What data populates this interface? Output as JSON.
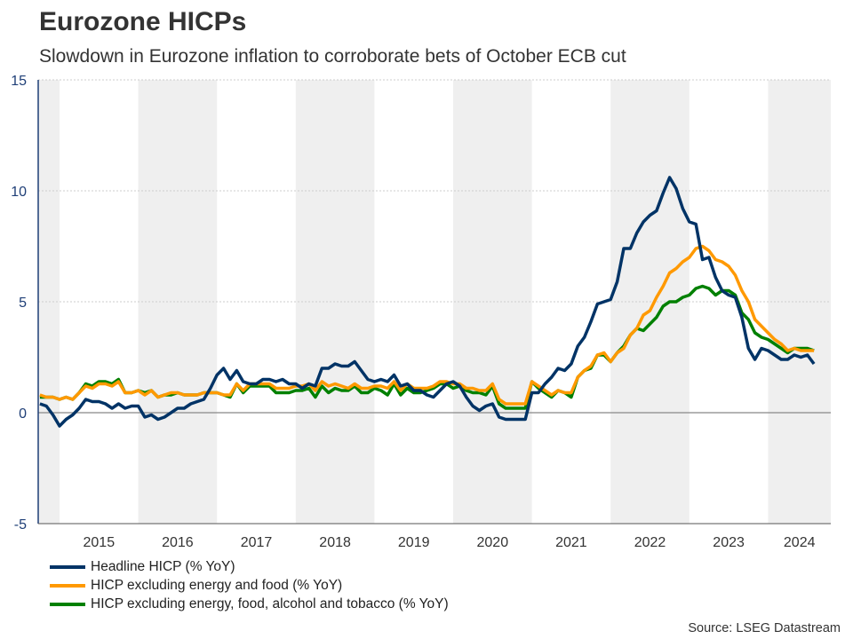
{
  "colors": {
    "headline": "#003366",
    "core_ef": "#ff9900",
    "core_efat": "#008000",
    "band": "#efefef",
    "axis": "#1f3f77"
  },
  "chart_data": {
    "type": "line",
    "title": "Eurozone HICPs",
    "subtitle": "Slowdown in Eurozone inflation to corroborate bets of October ECB cut",
    "start": "2014-10",
    "end": "2024-08",
    "frequency": "monthly",
    "ylim": [
      -5,
      15
    ],
    "yticks": [
      -5,
      0,
      5,
      10,
      15
    ],
    "ytick_labels": [
      "-5",
      "0",
      "5",
      "10",
      "15"
    ],
    "xtick_labels": [
      "2015",
      "2016",
      "2017",
      "2018",
      "2019",
      "2020",
      "2021",
      "2022",
      "2023",
      "2024"
    ],
    "legend_position": "bottom-left",
    "source": "Source: LSEG Datastream",
    "series": [
      {
        "name": "Headline HICP (% YoY)",
        "key": "headline",
        "values": [
          0.4,
          0.3,
          -0.1,
          -0.6,
          -0.3,
          -0.1,
          0.2,
          0.6,
          0.5,
          0.5,
          0.4,
          0.2,
          0.4,
          0.2,
          0.3,
          0.3,
          -0.2,
          -0.1,
          -0.3,
          -0.2,
          0.0,
          0.2,
          0.2,
          0.4,
          0.5,
          0.6,
          1.1,
          1.7,
          2.0,
          1.5,
          1.9,
          1.4,
          1.3,
          1.3,
          1.5,
          1.5,
          1.4,
          1.5,
          1.3,
          1.3,
          1.1,
          1.3,
          1.2,
          2.0,
          2.0,
          2.2,
          2.1,
          2.1,
          2.3,
          1.9,
          1.5,
          1.4,
          1.5,
          1.4,
          1.7,
          1.2,
          1.3,
          1.0,
          1.0,
          0.8,
          0.7,
          1.0,
          1.3,
          1.4,
          1.2,
          0.7,
          0.3,
          0.1,
          0.3,
          0.4,
          -0.2,
          -0.3,
          -0.3,
          -0.3,
          -0.3,
          0.9,
          0.9,
          1.3,
          1.6,
          2.0,
          1.9,
          2.2,
          3.0,
          3.4,
          4.1,
          4.9,
          5.0,
          5.1,
          5.9,
          7.4,
          7.4,
          8.1,
          8.6,
          8.9,
          9.1,
          9.9,
          10.6,
          10.1,
          9.2,
          8.6,
          8.5,
          6.9,
          7.0,
          6.1,
          5.5,
          5.3,
          5.2,
          4.3,
          2.9,
          2.4,
          2.9,
          2.8,
          2.6,
          2.4,
          2.4,
          2.6,
          2.5,
          2.6,
          2.2
        ]
      },
      {
        "name": "HICP excluding energy and food (% YoY)",
        "key": "core_ef",
        "values": [
          0.8,
          0.7,
          0.7,
          0.6,
          0.7,
          0.6,
          0.9,
          1.2,
          1.1,
          1.3,
          1.3,
          1.2,
          1.4,
          0.9,
          0.9,
          1.0,
          0.8,
          1.0,
          0.7,
          0.8,
          0.9,
          0.9,
          0.8,
          0.8,
          0.8,
          0.9,
          0.9,
          0.9,
          0.8,
          0.8,
          1.3,
          1.0,
          1.3,
          1.3,
          1.3,
          1.3,
          1.1,
          1.1,
          1.1,
          1.2,
          1.2,
          1.3,
          1.0,
          1.4,
          1.2,
          1.3,
          1.2,
          1.1,
          1.3,
          1.1,
          1.1,
          1.2,
          1.2,
          1.1,
          1.4,
          1.0,
          1.3,
          1.1,
          1.1,
          1.1,
          1.2,
          1.4,
          1.4,
          1.3,
          1.3,
          1.1,
          1.1,
          1.0,
          1.0,
          1.3,
          0.6,
          0.4,
          0.4,
          0.4,
          0.4,
          1.4,
          1.2,
          1.0,
          0.8,
          1.0,
          0.9,
          0.9,
          1.6,
          1.9,
          2.1,
          2.6,
          2.7,
          2.3,
          2.7,
          2.9,
          3.5,
          3.8,
          4.4,
          4.6,
          5.2,
          5.7,
          6.3,
          6.5,
          6.8,
          7.0,
          7.4,
          7.5,
          7.3,
          6.9,
          6.8,
          6.6,
          6.2,
          5.5,
          5.0,
          4.2,
          3.9,
          3.6,
          3.3,
          3.1,
          2.8,
          2.9,
          2.8,
          2.8,
          2.8
        ]
      },
      {
        "name": "HICP excluding energy, food, alcohol and tobacco (% YoY)",
        "key": "core_efat",
        "values": [
          0.7,
          0.7,
          0.7,
          0.6,
          0.7,
          0.6,
          0.9,
          1.3,
          1.2,
          1.4,
          1.4,
          1.3,
          1.5,
          0.9,
          0.9,
          1.0,
          0.9,
          1.0,
          0.7,
          0.8,
          0.8,
          0.9,
          0.8,
          0.8,
          0.8,
          0.9,
          0.9,
          0.9,
          0.8,
          0.7,
          1.3,
          0.9,
          1.2,
          1.2,
          1.2,
          1.2,
          0.9,
          0.9,
          0.9,
          1.0,
          1.0,
          1.1,
          0.7,
          1.2,
          0.9,
          1.1,
          1.0,
          1.0,
          1.2,
          0.9,
          0.9,
          1.1,
          1.0,
          0.8,
          1.3,
          0.8,
          1.1,
          0.9,
          0.9,
          1.0,
          1.1,
          1.3,
          1.3,
          1.1,
          1.2,
          1.0,
          0.9,
          0.9,
          0.8,
          1.2,
          0.4,
          0.2,
          0.2,
          0.2,
          0.2,
          1.4,
          1.1,
          0.9,
          0.7,
          1.0,
          0.9,
          0.7,
          1.6,
          1.9,
          2.0,
          2.6,
          2.6,
          2.3,
          2.7,
          3.0,
          3.5,
          3.8,
          3.7,
          4.0,
          4.3,
          4.8,
          5.0,
          5.0,
          5.2,
          5.3,
          5.6,
          5.7,
          5.6,
          5.3,
          5.5,
          5.5,
          5.3,
          4.5,
          4.2,
          3.6,
          3.4,
          3.3,
          3.1,
          2.9,
          2.7,
          2.9,
          2.9,
          2.9,
          2.8
        ]
      }
    ]
  }
}
